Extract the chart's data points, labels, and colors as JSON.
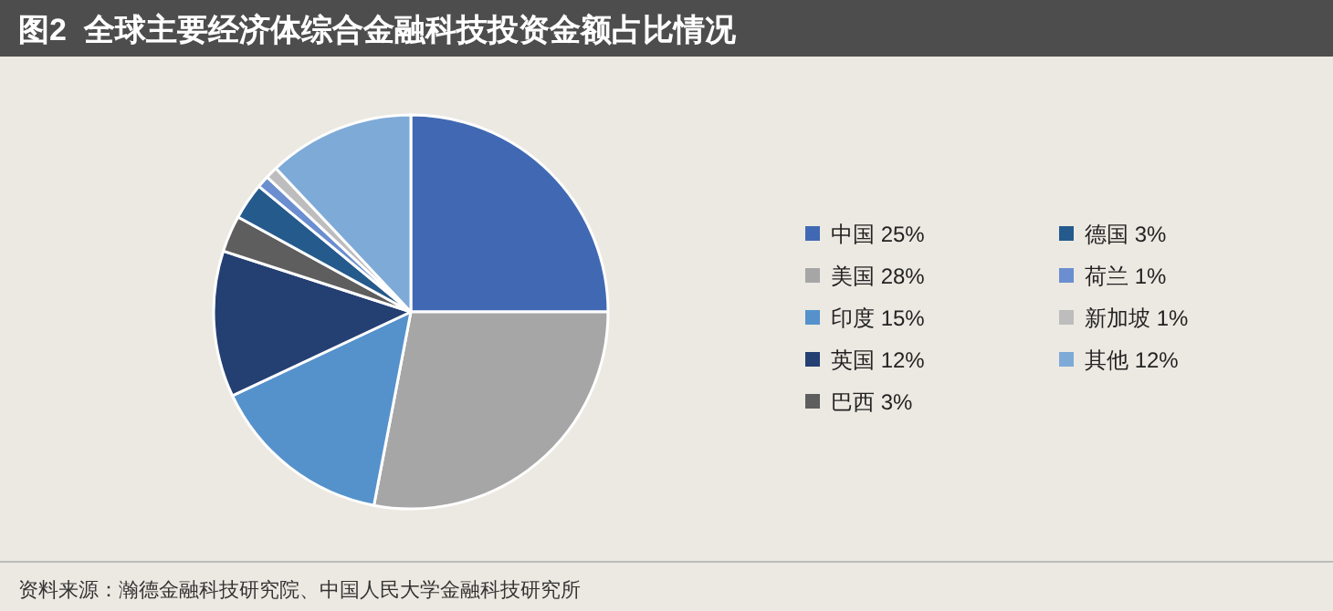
{
  "chart_data": {
    "type": "pie",
    "title": "图2  全球主要经济体综合金融科技投资金额占比情况",
    "categories": [
      "中国",
      "美国",
      "印度",
      "英国",
      "巴西",
      "德国",
      "荷兰",
      "新加坡",
      "其他"
    ],
    "values": [
      25,
      28,
      15,
      12,
      3,
      3,
      1,
      1,
      12
    ],
    "value_labels": [
      "25%",
      "28%",
      "15%",
      "12%",
      "3%",
      "3%",
      "1%",
      "1%",
      "12%"
    ],
    "colors": [
      "#4169b3",
      "#a6a6a6",
      "#5592cc",
      "#243f72",
      "#5e5e5e",
      "#255a8c",
      "#6b8ed0",
      "#bdbdbd",
      "#7eaad8"
    ],
    "legend": "right",
    "annotations": [
      "资料来源：瀚德金融科技研究院、中国人民大学金融科技研究所"
    ]
  }
}
